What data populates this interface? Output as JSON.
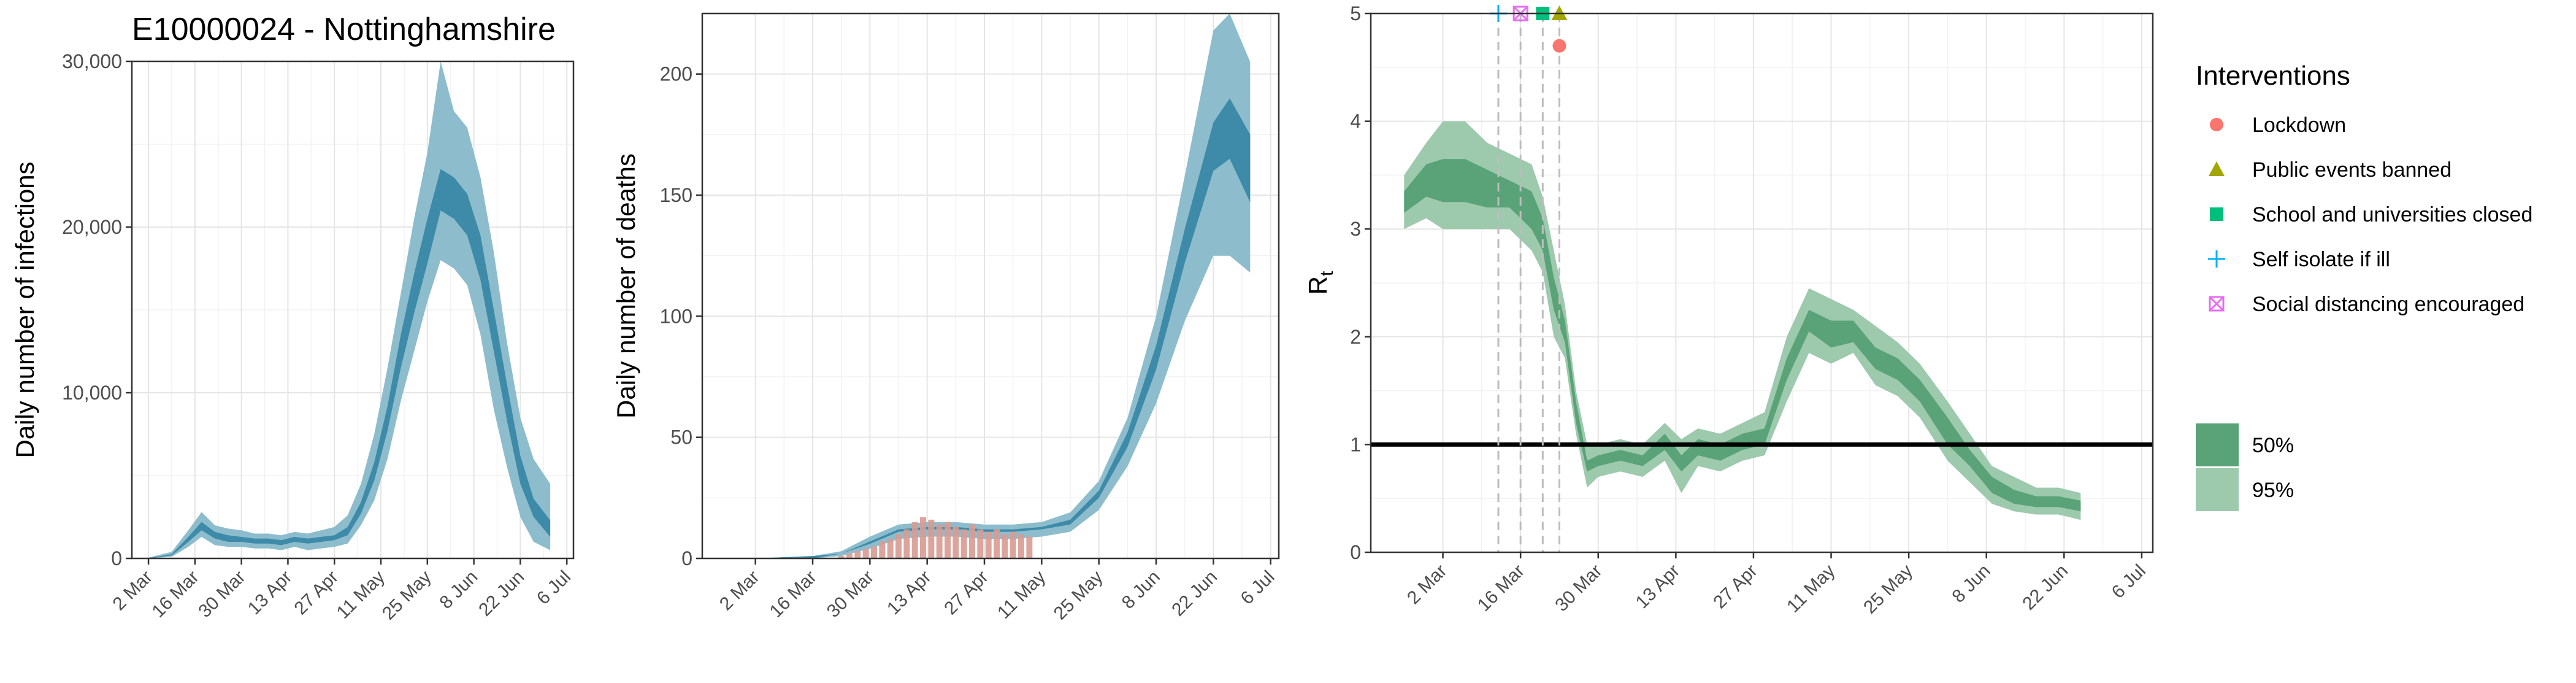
{
  "title": "E10000024 - Nottinghamshire",
  "colors": {
    "ribbon_blue_95": "#8dbdcd",
    "ribbon_blue_50": "#3d8ba8",
    "observed_deaths_bar": "#d79b94",
    "rt_95": "#9dc9ad",
    "rt_50": "#5aa277",
    "threshold_line": "#000000",
    "grid_major": "#e5e5e5",
    "grid_minor": "#f2f2f2",
    "lockdown": "#f8766d",
    "public_events": "#a3a500",
    "schools": "#00bf7d",
    "self_isolate": "#00b0f6",
    "social_distancing": "#e76bf3"
  },
  "chart_data": [
    {
      "id": "infections",
      "type": "area",
      "xlabel": "",
      "ylabel": "Daily number of infections",
      "x_ticks": [
        "2 Mar",
        "16 Mar",
        "30 Mar",
        "13 Apr",
        "27 Apr",
        "11 May",
        "25 May",
        "8 Jun",
        "22 Jun",
        "6 Jul"
      ],
      "y_ticks": [
        "0",
        "10,000",
        "20,000",
        "30,000"
      ],
      "ylim": [
        0,
        30000
      ],
      "grid": true,
      "series": [
        {
          "name": "95%",
          "x": [
            "2020-03-02",
            "2020-03-09",
            "2020-03-14",
            "2020-03-18",
            "2020-03-22",
            "2020-03-26",
            "2020-03-30",
            "2020-04-03",
            "2020-04-07",
            "2020-04-11",
            "2020-04-15",
            "2020-04-19",
            "2020-04-23",
            "2020-04-27",
            "2020-05-01",
            "2020-05-05",
            "2020-05-09",
            "2020-05-13",
            "2020-05-17",
            "2020-05-21",
            "2020-05-25",
            "2020-05-29",
            "2020-06-02",
            "2020-06-06",
            "2020-06-10",
            "2020-06-14",
            "2020-06-18",
            "2020-06-22",
            "2020-06-26",
            "2020-07-01"
          ],
          "lower": [
            0,
            100,
            700,
            1300,
            800,
            700,
            700,
            600,
            600,
            500,
            700,
            500,
            600,
            700,
            900,
            2000,
            3500,
            6000,
            9500,
            12500,
            15500,
            18000,
            17500,
            16500,
            13500,
            9000,
            5500,
            2500,
            1000,
            500
          ],
          "upper": [
            50,
            400,
            1700,
            2800,
            2000,
            1800,
            1700,
            1500,
            1500,
            1400,
            1600,
            1500,
            1700,
            1900,
            2600,
            4500,
            7500,
            11500,
            16000,
            20500,
            24500,
            30000,
            27000,
            26000,
            23000,
            18500,
            13000,
            8500,
            6000,
            4500
          ]
        },
        {
          "name": "50%",
          "x": [
            "2020-03-02",
            "2020-03-09",
            "2020-03-14",
            "2020-03-18",
            "2020-03-22",
            "2020-03-26",
            "2020-03-30",
            "2020-04-03",
            "2020-04-07",
            "2020-04-11",
            "2020-04-15",
            "2020-04-19",
            "2020-04-23",
            "2020-04-27",
            "2020-05-01",
            "2020-05-05",
            "2020-05-09",
            "2020-05-13",
            "2020-05-17",
            "2020-05-21",
            "2020-05-25",
            "2020-05-29",
            "2020-06-02",
            "2020-06-06",
            "2020-06-10",
            "2020-06-14",
            "2020-06-18",
            "2020-06-22",
            "2020-06-26",
            "2020-07-01"
          ],
          "lower": [
            0,
            180,
            1000,
            1700,
            1200,
            1000,
            1000,
            900,
            900,
            800,
            1000,
            900,
            1000,
            1100,
            1400,
            2700,
            4700,
            7700,
            11500,
            14800,
            17800,
            21000,
            20500,
            19500,
            16800,
            12500,
            8300,
            4500,
            2500,
            1300
          ],
          "upper": [
            20,
            260,
            1300,
            2200,
            1600,
            1400,
            1300,
            1200,
            1200,
            1100,
            1300,
            1200,
            1300,
            1400,
            1900,
            3400,
            5800,
            9200,
            13500,
            17200,
            20500,
            23500,
            23000,
            22000,
            19500,
            15000,
            10500,
            6200,
            3600,
            2300
          ]
        }
      ]
    },
    {
      "id": "deaths",
      "type": "area",
      "xlabel": "",
      "ylabel": "Daily number of deaths",
      "x_ticks": [
        "2 Mar",
        "16 Mar",
        "30 Mar",
        "13 Apr",
        "27 Apr",
        "11 May",
        "25 May",
        "8 Jun",
        "22 Jun",
        "6 Jul"
      ],
      "y_ticks": [
        "0",
        "50",
        "100",
        "150",
        "200"
      ],
      "ylim": [
        0,
        225
      ],
      "grid": true,
      "series": [
        {
          "name": "95%",
          "x": [
            "2020-03-02",
            "2020-03-16",
            "2020-03-23",
            "2020-03-30",
            "2020-04-06",
            "2020-04-13",
            "2020-04-20",
            "2020-04-27",
            "2020-05-04",
            "2020-05-11",
            "2020-05-18",
            "2020-05-25",
            "2020-06-01",
            "2020-06-08",
            "2020-06-15",
            "2020-06-22",
            "2020-06-26",
            "2020-07-01"
          ],
          "lower": [
            0,
            0,
            1,
            4,
            8,
            9,
            9,
            8,
            8,
            9,
            11,
            20,
            38,
            64,
            98,
            125,
            125,
            118
          ],
          "upper": [
            0,
            1,
            3,
            9,
            14,
            15,
            15,
            14,
            14,
            15,
            19,
            32,
            58,
            100,
            158,
            218,
            225,
            205
          ]
        },
        {
          "name": "50%",
          "x": [
            "2020-03-02",
            "2020-03-16",
            "2020-03-23",
            "2020-03-30",
            "2020-04-06",
            "2020-04-13",
            "2020-04-20",
            "2020-04-27",
            "2020-05-04",
            "2020-05-11",
            "2020-05-18",
            "2020-05-25",
            "2020-06-01",
            "2020-06-08",
            "2020-06-15",
            "2020-06-22",
            "2020-06-26",
            "2020-07-01"
          ],
          "lower": [
            0,
            0,
            2,
            6,
            11,
            12,
            12,
            11,
            11,
            12,
            14,
            25,
            46,
            78,
            122,
            160,
            165,
            147
          ],
          "upper": [
            0,
            1,
            2,
            7,
            12,
            13,
            13,
            12,
            12,
            13,
            16,
            28,
            52,
            88,
            136,
            180,
            190,
            175
          ]
        }
      ],
      "observed_deaths": {
        "x": [
          "2020-03-23",
          "2020-03-25",
          "2020-03-27",
          "2020-03-29",
          "2020-03-31",
          "2020-04-02",
          "2020-04-04",
          "2020-04-06",
          "2020-04-08",
          "2020-04-10",
          "2020-04-12",
          "2020-04-14",
          "2020-04-16",
          "2020-04-18",
          "2020-04-20",
          "2020-04-22",
          "2020-04-24",
          "2020-04-26",
          "2020-04-28",
          "2020-04-30",
          "2020-05-02",
          "2020-05-04",
          "2020-05-06",
          "2020-05-08"
        ],
        "values": [
          1,
          2,
          3,
          4,
          5,
          7,
          8,
          10,
          12,
          15,
          17,
          16,
          14,
          15,
          13,
          12,
          14,
          12,
          11,
          12,
          10,
          11,
          10,
          9
        ]
      }
    },
    {
      "id": "rt",
      "type": "area",
      "xlabel": "",
      "ylabel": "Rt",
      "x_ticks": [
        "2 Mar",
        "16 Mar",
        "30 Mar",
        "13 Apr",
        "27 Apr",
        "11 May",
        "25 May",
        "8 Jun",
        "22 Jun",
        "6 Jul"
      ],
      "y_ticks": [
        "0",
        "1",
        "2",
        "3",
        "4",
        "5"
      ],
      "ylim": [
        0,
        5
      ],
      "grid": true,
      "threshold": 1,
      "series": [
        {
          "name": "95%",
          "x": [
            "2020-02-24",
            "2020-02-28",
            "2020-03-02",
            "2020-03-06",
            "2020-03-10",
            "2020-03-14",
            "2020-03-18",
            "2020-03-20",
            "2020-03-22",
            "2020-03-24",
            "2020-03-26",
            "2020-03-28",
            "2020-03-30",
            "2020-04-03",
            "2020-04-07",
            "2020-04-11",
            "2020-04-14",
            "2020-04-17",
            "2020-04-21",
            "2020-04-25",
            "2020-04-29",
            "2020-05-03",
            "2020-05-07",
            "2020-05-11",
            "2020-05-15",
            "2020-05-19",
            "2020-05-23",
            "2020-05-27",
            "2020-06-01",
            "2020-06-05",
            "2020-06-09",
            "2020-06-13",
            "2020-06-17",
            "2020-06-21",
            "2020-06-25"
          ],
          "lower": [
            3.0,
            3.1,
            3.0,
            3.0,
            3.0,
            3.0,
            2.8,
            2.6,
            2.0,
            1.8,
            1.1,
            0.6,
            0.7,
            0.75,
            0.7,
            0.85,
            0.55,
            0.8,
            0.75,
            0.85,
            0.9,
            1.4,
            1.85,
            1.75,
            1.85,
            1.55,
            1.45,
            1.25,
            0.85,
            0.65,
            0.45,
            0.38,
            0.35,
            0.35,
            0.3
          ],
          "upper": [
            3.5,
            3.8,
            4.0,
            4.0,
            3.8,
            3.7,
            3.6,
            3.3,
            2.8,
            2.3,
            1.5,
            1.0,
            1.0,
            1.05,
            1.0,
            1.2,
            1.05,
            1.15,
            1.1,
            1.2,
            1.3,
            2.0,
            2.45,
            2.35,
            2.25,
            2.1,
            1.95,
            1.75,
            1.4,
            1.1,
            0.8,
            0.7,
            0.6,
            0.6,
            0.55
          ]
        },
        {
          "name": "50%",
          "x": [
            "2020-02-24",
            "2020-02-28",
            "2020-03-02",
            "2020-03-06",
            "2020-03-10",
            "2020-03-14",
            "2020-03-18",
            "2020-03-20",
            "2020-03-22",
            "2020-03-24",
            "2020-03-26",
            "2020-03-28",
            "2020-03-30",
            "2020-04-03",
            "2020-04-07",
            "2020-04-11",
            "2020-04-14",
            "2020-04-17",
            "2020-04-21",
            "2020-04-25",
            "2020-04-29",
            "2020-05-03",
            "2020-05-07",
            "2020-05-11",
            "2020-05-15",
            "2020-05-19",
            "2020-05-23",
            "2020-05-27",
            "2020-06-01",
            "2020-06-05",
            "2020-06-09",
            "2020-06-13",
            "2020-06-17",
            "2020-06-21",
            "2020-06-25"
          ],
          "lower": [
            3.15,
            3.3,
            3.25,
            3.25,
            3.2,
            3.2,
            3.0,
            2.8,
            2.25,
            1.95,
            1.2,
            0.75,
            0.8,
            0.85,
            0.8,
            0.95,
            0.75,
            0.9,
            0.85,
            0.95,
            1.0,
            1.6,
            2.05,
            1.9,
            1.95,
            1.7,
            1.6,
            1.4,
            1.0,
            0.8,
            0.55,
            0.45,
            0.42,
            0.42,
            0.38
          ],
          "upper": [
            3.35,
            3.6,
            3.65,
            3.65,
            3.55,
            3.45,
            3.35,
            3.1,
            2.55,
            2.15,
            1.4,
            0.85,
            0.9,
            0.95,
            0.9,
            1.1,
            0.9,
            1.05,
            1.0,
            1.1,
            1.15,
            1.8,
            2.25,
            2.15,
            2.15,
            1.9,
            1.8,
            1.6,
            1.25,
            0.95,
            0.7,
            0.58,
            0.52,
            0.52,
            0.48
          ]
        }
      ],
      "interventions": [
        {
          "key": "self_isolate",
          "label": "Self isolate if ill",
          "date": "2020-03-12",
          "y": 5.0,
          "shape": "plus"
        },
        {
          "key": "social_distancing",
          "label": "Social distancing encouraged",
          "date": "2020-03-16",
          "y": 5.0,
          "shape": "square-cross"
        },
        {
          "key": "schools",
          "label": "School and universities closed",
          "date": "2020-03-20",
          "y": 5.0,
          "shape": "square"
        },
        {
          "key": "public_events",
          "label": "Public events banned",
          "date": "2020-03-23",
          "y": 5.0,
          "shape": "triangle"
        },
        {
          "key": "lockdown",
          "label": "Lockdown",
          "date": "2020-03-23",
          "y": 4.7,
          "shape": "circle"
        }
      ]
    }
  ],
  "legend": {
    "interventions_title": "Interventions",
    "interventions": [
      {
        "key": "lockdown",
        "label": "Lockdown",
        "shape": "circle"
      },
      {
        "key": "public_events",
        "label": "Public events banned",
        "shape": "triangle"
      },
      {
        "key": "schools",
        "label": "School and universities closed",
        "shape": "square"
      },
      {
        "key": "self_isolate",
        "label": "Self isolate if ill",
        "shape": "plus"
      },
      {
        "key": "social_distancing",
        "label": "Social distancing encouraged",
        "shape": "square-cross"
      }
    ],
    "ci": [
      {
        "label": "50%",
        "color_key": "rt_50"
      },
      {
        "label": "95%",
        "color_key": "rt_95"
      }
    ]
  }
}
